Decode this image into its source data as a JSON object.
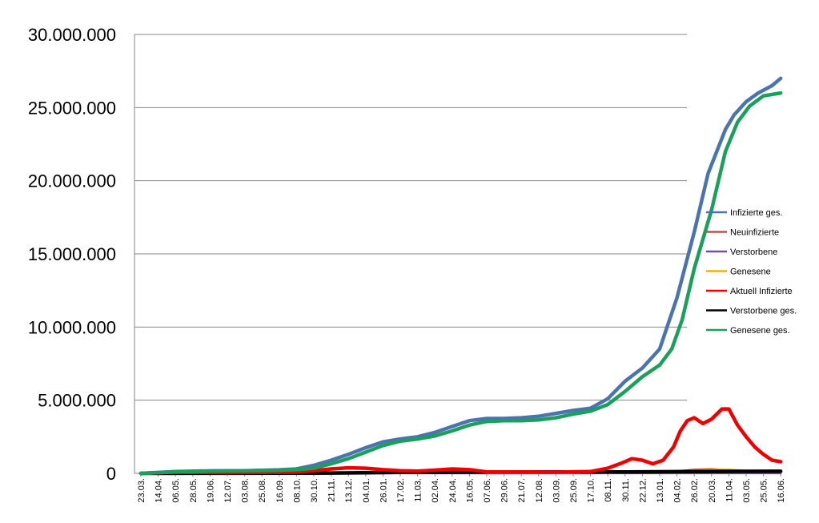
{
  "chart_data": {
    "type": "line",
    "xlabel": "",
    "ylabel": "",
    "ylim": [
      0,
      30000000
    ],
    "yticks": [
      0,
      5000000,
      10000000,
      15000000,
      20000000,
      25000000,
      30000000
    ],
    "ytick_labels": [
      "0",
      "5.000.000",
      "10.000.000",
      "15.000.000",
      "20.000.000",
      "25.000.000",
      "30.000.000"
    ],
    "grid": "horizontal",
    "legend_position": "right",
    "categories": [
      "23.03.",
      "14.04.",
      "06.05.",
      "28.05.",
      "19.06.",
      "12.07.",
      "03.08.",
      "25.08.",
      "16.09.",
      "08.10.",
      "30.10.",
      "21.11.",
      "13.12.",
      "04.01.",
      "26.01.",
      "17.02.",
      "11.03.",
      "02.04.",
      "24.04.",
      "16.05.",
      "07.06.",
      "29.06.",
      "21.07.",
      "12.08.",
      "03.09.",
      "25.09.",
      "17.10.",
      "08.11.",
      "30.11.",
      "22.12.",
      "13.01.",
      "04.02.",
      "26.02.",
      "20.03.",
      "11.04.",
      "03.05.",
      "25.05.",
      "16.06."
    ],
    "series": [
      {
        "name": "Infizierte ges.",
        "color": "#4a74b0",
        "values": [
          [
            0,
            0
          ],
          [
            2,
            120000
          ],
          [
            4,
            170000
          ],
          [
            6,
            180000
          ],
          [
            8,
            240000
          ],
          [
            9,
            300000
          ],
          [
            10,
            550000
          ],
          [
            11,
            900000
          ],
          [
            12,
            1300000
          ],
          [
            13,
            1750000
          ],
          [
            14,
            2150000
          ],
          [
            15,
            2350000
          ],
          [
            16,
            2500000
          ],
          [
            17,
            2800000
          ],
          [
            18,
            3200000
          ],
          [
            19,
            3600000
          ],
          [
            20,
            3750000
          ],
          [
            21,
            3750000
          ],
          [
            22,
            3800000
          ],
          [
            23,
            3900000
          ],
          [
            24,
            4100000
          ],
          [
            25,
            4300000
          ],
          [
            26,
            4450000
          ],
          [
            27,
            5100000
          ],
          [
            28,
            6300000
          ],
          [
            29,
            7200000
          ],
          [
            30,
            8500000
          ],
          [
            31,
            12000000
          ],
          [
            32,
            16500000
          ],
          [
            32.8,
            20500000
          ],
          [
            33.3,
            22000000
          ],
          [
            33.8,
            23500000
          ],
          [
            34.3,
            24500000
          ],
          [
            35,
            25400000
          ],
          [
            35.7,
            26000000
          ],
          [
            36.5,
            26500000
          ],
          [
            37,
            27000000
          ]
        ]
      },
      {
        "name": "Neuinfizierte",
        "color": "#c0504d",
        "values": [
          [
            0,
            0
          ],
          [
            8,
            30000
          ],
          [
            12,
            60000
          ],
          [
            16,
            40000
          ],
          [
            20,
            30000
          ],
          [
            24,
            20000
          ],
          [
            28,
            40000
          ],
          [
            30,
            60000
          ],
          [
            31,
            150000
          ],
          [
            32,
            250000
          ],
          [
            33,
            300000
          ],
          [
            34,
            200000
          ],
          [
            35,
            150000
          ],
          [
            36,
            100000
          ],
          [
            37,
            80000
          ]
        ]
      },
      {
        "name": "Verstorbene",
        "color": "#7e4ba0",
        "values": [
          [
            0,
            0
          ],
          [
            10,
            3000
          ],
          [
            13,
            8000
          ],
          [
            16,
            5000
          ],
          [
            20,
            2000
          ],
          [
            28,
            3000
          ],
          [
            32,
            5000
          ],
          [
            37,
            4000
          ]
        ]
      },
      {
        "name": "Genesene",
        "color": "#f2b100",
        "values": [
          [
            0,
            0
          ],
          [
            10,
            20000
          ],
          [
            13,
            60000
          ],
          [
            16,
            50000
          ],
          [
            20,
            30000
          ],
          [
            28,
            40000
          ],
          [
            31,
            120000
          ],
          [
            32,
            200000
          ],
          [
            33,
            260000
          ],
          [
            34,
            250000
          ],
          [
            35,
            180000
          ],
          [
            36,
            120000
          ],
          [
            37,
            90000
          ]
        ]
      },
      {
        "name": "Aktuell Infizierte",
        "color": "#ee0000",
        "values": [
          [
            0,
            0
          ],
          [
            2,
            80000
          ],
          [
            5,
            50000
          ],
          [
            9,
            80000
          ],
          [
            10,
            180000
          ],
          [
            11,
            300000
          ],
          [
            12,
            380000
          ],
          [
            13,
            350000
          ],
          [
            14,
            250000
          ],
          [
            15,
            180000
          ],
          [
            16,
            150000
          ],
          [
            17,
            220000
          ],
          [
            18,
            300000
          ],
          [
            19,
            250000
          ],
          [
            20,
            100000
          ],
          [
            24,
            80000
          ],
          [
            26,
            120000
          ],
          [
            27,
            350000
          ],
          [
            27.8,
            700000
          ],
          [
            28.4,
            1000000
          ],
          [
            29,
            900000
          ],
          [
            29.6,
            650000
          ],
          [
            30.2,
            900000
          ],
          [
            30.8,
            1800000
          ],
          [
            31.2,
            2900000
          ],
          [
            31.6,
            3600000
          ],
          [
            32,
            3800000
          ],
          [
            32.5,
            3400000
          ],
          [
            33,
            3700000
          ],
          [
            33.6,
            4400000
          ],
          [
            34,
            4400000
          ],
          [
            34.5,
            3300000
          ],
          [
            35,
            2500000
          ],
          [
            35.5,
            1800000
          ],
          [
            36,
            1300000
          ],
          [
            36.5,
            900000
          ],
          [
            37,
            800000
          ]
        ]
      },
      {
        "name": "Verstorbene ges.",
        "color": "#000000",
        "values": [
          [
            0,
            0
          ],
          [
            3,
            7000
          ],
          [
            9,
            9000
          ],
          [
            11,
            20000
          ],
          [
            13,
            40000
          ],
          [
            15,
            65000
          ],
          [
            17,
            75000
          ],
          [
            20,
            90000
          ],
          [
            25,
            92000
          ],
          [
            28,
            100000
          ],
          [
            31,
            115000
          ],
          [
            33,
            130000
          ],
          [
            35,
            135000
          ],
          [
            37,
            140000
          ]
        ]
      },
      {
        "name": "Genesene ges.",
        "color": "#1aa05a",
        "values": [
          [
            0,
            0
          ],
          [
            2,
            100000
          ],
          [
            4,
            150000
          ],
          [
            6,
            170000
          ],
          [
            8,
            200000
          ],
          [
            9,
            250000
          ],
          [
            10,
            350000
          ],
          [
            11,
            650000
          ],
          [
            12,
            1000000
          ],
          [
            13,
            1450000
          ],
          [
            14,
            1900000
          ],
          [
            15,
            2200000
          ],
          [
            16,
            2350000
          ],
          [
            17,
            2550000
          ],
          [
            18,
            2900000
          ],
          [
            19,
            3300000
          ],
          [
            20,
            3550000
          ],
          [
            21,
            3600000
          ],
          [
            22,
            3600000
          ],
          [
            23,
            3650000
          ],
          [
            24,
            3800000
          ],
          [
            25,
            4050000
          ],
          [
            26,
            4250000
          ],
          [
            27,
            4700000
          ],
          [
            28,
            5600000
          ],
          [
            29,
            6600000
          ],
          [
            30,
            7400000
          ],
          [
            30.7,
            8500000
          ],
          [
            31.3,
            10500000
          ],
          [
            32,
            14000000
          ],
          [
            33,
            18000000
          ],
          [
            33.8,
            22000000
          ],
          [
            34.5,
            24000000
          ],
          [
            35.2,
            25100000
          ],
          [
            36,
            25800000
          ],
          [
            37,
            26000000
          ]
        ]
      }
    ]
  }
}
